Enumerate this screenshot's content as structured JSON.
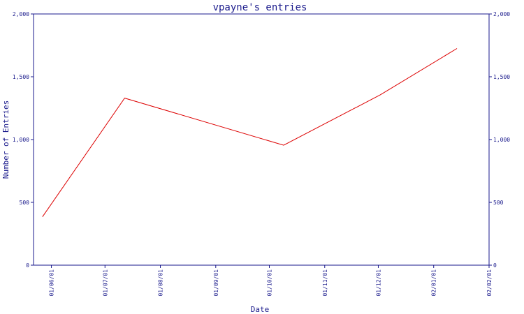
{
  "chart_data": {
    "type": "line",
    "title": "vpayne's entries",
    "xlabel": "Date",
    "ylabel": "Number of Entries",
    "ylim": [
      0,
      2000
    ],
    "yticks": [
      0,
      500,
      1000,
      1500,
      2000
    ],
    "ytick_labels": [
      "0",
      "500",
      "1,000",
      "1,500",
      "2,000"
    ],
    "x_type": "date",
    "xlim": [
      "2001-05-22",
      "2002-02-01"
    ],
    "xticks": [
      "2001-06-01",
      "2001-07-01",
      "2001-08-01",
      "2001-09-01",
      "2001-10-01",
      "2001-11-01",
      "2001-12-01",
      "2002-01-01",
      "2002-02-01"
    ],
    "xtick_labels": [
      "01/06/01",
      "01/07/01",
      "01/08/01",
      "01/09/01",
      "01/10/01",
      "01/11/01",
      "01/12/01",
      "02/01/01",
      "02/02/01"
    ],
    "grid": false,
    "right_axis": true,
    "series": [
      {
        "color": "#dd0000",
        "points": [
          {
            "x": "2001-05-27",
            "y": 385
          },
          {
            "x": "2001-07-12",
            "y": 1330
          },
          {
            "x": "2001-10-09",
            "y": 955
          },
          {
            "x": "2001-12-02",
            "y": 1355
          },
          {
            "x": "2002-01-14",
            "y": 1725
          }
        ]
      }
    ]
  },
  "colors": {
    "axis": "#1a1a8c",
    "text": "#1a1a8c",
    "line": "#dd0000",
    "background": "#ffffff"
  }
}
